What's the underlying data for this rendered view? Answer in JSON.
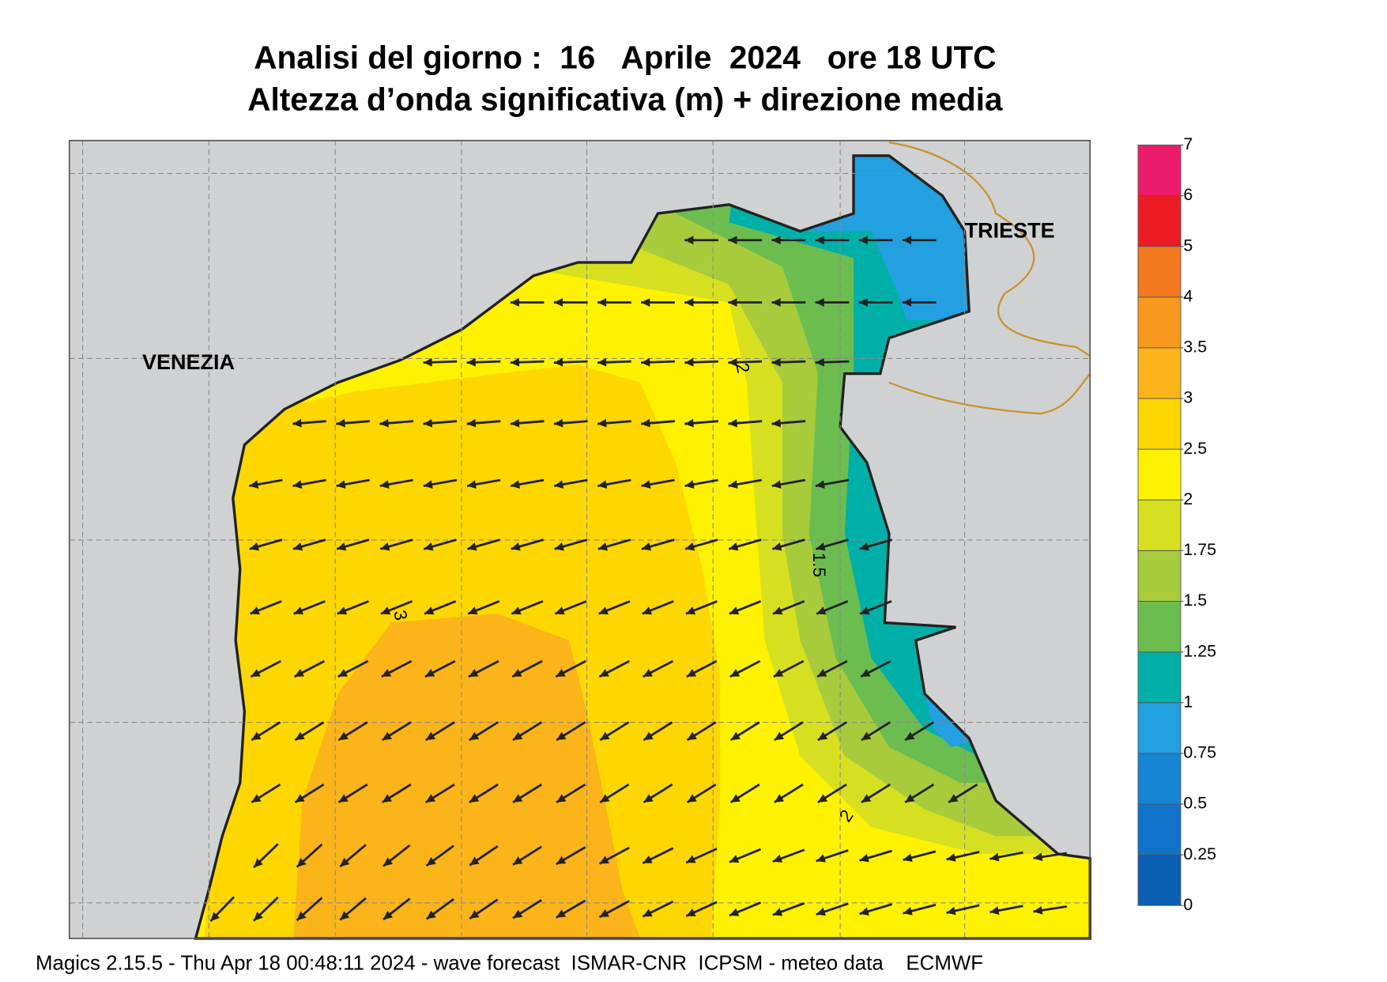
{
  "title": "Analisi del giorno :  16   Aprile  2024   ore 18 UTC",
  "subtitle": "Altezza d’onda significativa (m) + direzione media",
  "places": [
    "VENEZIA",
    "TRIESTE"
  ],
  "colorbar": {
    "ticks": [
      0,
      0.25,
      0.5,
      0.75,
      1,
      1.25,
      1.5,
      1.75,
      2,
      2.5,
      3,
      3.5,
      4,
      5,
      6,
      7
    ],
    "colors": [
      "#0a5fb4",
      "#1072c8",
      "#1585d4",
      "#22a0e0",
      "#00b0a8",
      "#6cbd4f",
      "#a8cb3b",
      "#d6e021",
      "#fff200",
      "#ffd700",
      "#fbb41a",
      "#f8981d",
      "#f47a20",
      "#ed1c24",
      "#ec1c6c"
    ]
  },
  "contour_labels": [
    2,
    1.5,
    3,
    2
  ],
  "footer": "Magics 2.15.5 - Thu Apr 18 00:48:11 2024 - wave forecast  ISMAR-CNR  ICPSM - meteo data    ECMWF"
}
